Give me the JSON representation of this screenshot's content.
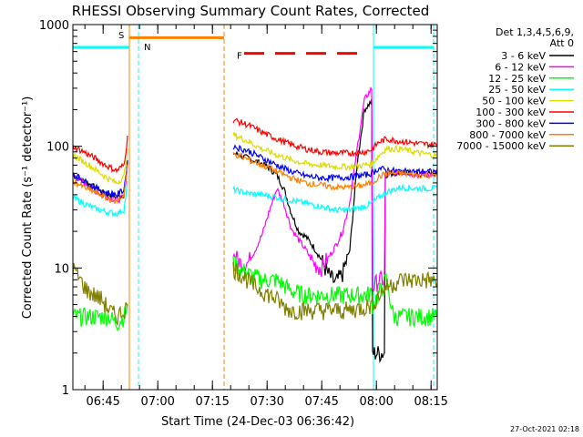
{
  "chart_data": {
    "type": "line",
    "title": "RHESSI Observing Summary Count Rates, Corrected",
    "xlabel": "Start Time (24-Dec-03 06:36:42)",
    "ylabel": "Corrected Count Rate (s⁻¹ detector⁻¹)",
    "yscale": "log",
    "ylim": [
      1,
      1000
    ],
    "xlim_minutes": [
      0,
      100
    ],
    "x_tick_labels": [
      "06:45",
      "07:00",
      "07:15",
      "07:30",
      "07:45",
      "08:00",
      "08:15"
    ],
    "x_tick_minutes": [
      8.3,
      23.3,
      38.3,
      53.3,
      68.3,
      83.3,
      98.3
    ],
    "y_tick_labels": [
      "1",
      "10",
      "100",
      "1000"
    ],
    "y_tick_values": [
      1,
      10,
      100,
      1000
    ],
    "timestamp": "27-Oct-2021 02:18",
    "legend_header": [
      "Det 1,3,4,5,6,9,",
      "Att 0"
    ],
    "annotations": [
      {
        "label": "S",
        "color": "#ff8000"
      },
      {
        "label": "N",
        "color": "#00ffff"
      },
      {
        "label": "F",
        "color": "#ff0000"
      }
    ],
    "series": [
      {
        "name": "3 - 6 keV",
        "color": "#000000",
        "points": [
          [
            0,
            58
          ],
          [
            4,
            50
          ],
          [
            8,
            42
          ],
          [
            12,
            38
          ],
          [
            14,
            40
          ],
          [
            15.2,
            80
          ],
          [
            44,
            88
          ],
          [
            48,
            80
          ],
          [
            52,
            72
          ],
          [
            54,
            66
          ],
          [
            56,
            58
          ],
          [
            58,
            44
          ],
          [
            60,
            28
          ],
          [
            62,
            20
          ],
          [
            64,
            18
          ],
          [
            66,
            15
          ],
          [
            68,
            12
          ],
          [
            70,
            9
          ],
          [
            72,
            7.5
          ],
          [
            74,
            9
          ],
          [
            76,
            14
          ],
          [
            78,
            70
          ],
          [
            80,
            200
          ],
          [
            82,
            235
          ],
          [
            82.3,
            2
          ],
          [
            85.5,
            2
          ],
          [
            85.6,
            58
          ],
          [
            90,
            62
          ],
          [
            95,
            58
          ],
          [
            100,
            60
          ]
        ]
      },
      {
        "name": "6 - 12 keV",
        "color": "#ff00ff",
        "points": [
          [
            0,
            58
          ],
          [
            4,
            48
          ],
          [
            8,
            40
          ],
          [
            12,
            36
          ],
          [
            14,
            38
          ],
          [
            15.2,
            80
          ],
          [
            44,
            13
          ],
          [
            46,
            11
          ],
          [
            48,
            11
          ],
          [
            50,
            14
          ],
          [
            52,
            19
          ],
          [
            54,
            30
          ],
          [
            56,
            45
          ],
          [
            58,
            33
          ],
          [
            60,
            21
          ],
          [
            62,
            17
          ],
          [
            64,
            14
          ],
          [
            66,
            11
          ],
          [
            68,
            10
          ],
          [
            70,
            12
          ],
          [
            72,
            15
          ],
          [
            74,
            20
          ],
          [
            76,
            35
          ],
          [
            78,
            95
          ],
          [
            80,
            240
          ],
          [
            82,
            300
          ],
          [
            82.3,
            7
          ],
          [
            84,
            8
          ],
          [
            85.5,
            8
          ],
          [
            86,
            58
          ],
          [
            90,
            62
          ],
          [
            95,
            58
          ],
          [
            100,
            60
          ]
        ]
      },
      {
        "name": "12 - 25 keV",
        "color": "#00ff00",
        "points": [
          [
            0,
            4
          ],
          [
            2,
            4
          ],
          [
            4,
            4
          ],
          [
            6,
            4
          ],
          [
            8,
            4
          ],
          [
            10,
            4
          ],
          [
            12,
            3.5
          ],
          [
            14,
            4
          ],
          [
            15.2,
            5
          ],
          [
            44,
            11
          ],
          [
            48,
            9
          ],
          [
            52,
            8
          ],
          [
            56,
            8
          ],
          [
            60,
            6.5
          ],
          [
            64,
            6
          ],
          [
            68,
            6
          ],
          [
            72,
            6
          ],
          [
            76,
            6
          ],
          [
            80,
            6
          ],
          [
            82,
            6.2
          ],
          [
            82.3,
            5
          ],
          [
            86,
            8
          ],
          [
            88,
            4
          ],
          [
            92,
            4
          ],
          [
            96,
            4
          ],
          [
            100,
            4
          ]
        ]
      },
      {
        "name": "25 - 50 keV",
        "color": "#00ffff",
        "points": [
          [
            0,
            38
          ],
          [
            3,
            34
          ],
          [
            6,
            31
          ],
          [
            9,
            29
          ],
          [
            12,
            28
          ],
          [
            14,
            30
          ],
          [
            15.2,
            55
          ],
          [
            44,
            44
          ],
          [
            48,
            41
          ],
          [
            52,
            40
          ],
          [
            56,
            38
          ],
          [
            60,
            36
          ],
          [
            64,
            34
          ],
          [
            68,
            32
          ],
          [
            72,
            30
          ],
          [
            76,
            30
          ],
          [
            80,
            32
          ],
          [
            82,
            34
          ],
          [
            84,
            38
          ],
          [
            86,
            42
          ],
          [
            90,
            46
          ],
          [
            95,
            45
          ],
          [
            100,
            45
          ]
        ]
      },
      {
        "name": "50 - 100 keV",
        "color": "#dddd00",
        "points": [
          [
            0,
            85
          ],
          [
            3,
            75
          ],
          [
            6,
            65
          ],
          [
            9,
            56
          ],
          [
            12,
            50
          ],
          [
            14,
            56
          ],
          [
            15.2,
            100
          ],
          [
            44,
            125
          ],
          [
            48,
            110
          ],
          [
            52,
            95
          ],
          [
            56,
            85
          ],
          [
            60,
            77
          ],
          [
            64,
            72
          ],
          [
            68,
            70
          ],
          [
            72,
            68
          ],
          [
            76,
            68
          ],
          [
            80,
            70
          ],
          [
            82,
            72
          ],
          [
            84,
            84
          ],
          [
            86,
            96
          ],
          [
            90,
            95
          ],
          [
            95,
            88
          ],
          [
            100,
            84
          ]
        ]
      },
      {
        "name": "100 - 300 keV",
        "color": "#ff0000",
        "points": [
          [
            0,
            100
          ],
          [
            3,
            90
          ],
          [
            6,
            80
          ],
          [
            9,
            70
          ],
          [
            12,
            63
          ],
          [
            14,
            70
          ],
          [
            15.2,
            130
          ],
          [
            44,
            165
          ],
          [
            48,
            150
          ],
          [
            52,
            130
          ],
          [
            56,
            115
          ],
          [
            60,
            103
          ],
          [
            64,
            95
          ],
          [
            68,
            90
          ],
          [
            72,
            88
          ],
          [
            76,
            88
          ],
          [
            80,
            90
          ],
          [
            82,
            94
          ],
          [
            84,
            108
          ],
          [
            86,
            115
          ],
          [
            90,
            110
          ],
          [
            95,
            105
          ],
          [
            100,
            103
          ]
        ]
      },
      {
        "name": "300 - 800 keV",
        "color": "#0000ff",
        "points": [
          [
            0,
            60
          ],
          [
            3,
            52
          ],
          [
            6,
            46
          ],
          [
            9,
            42
          ],
          [
            12,
            40
          ],
          [
            14,
            44
          ],
          [
            15.2,
            80
          ],
          [
            44,
            100
          ],
          [
            48,
            92
          ],
          [
            52,
            80
          ],
          [
            56,
            70
          ],
          [
            60,
            62
          ],
          [
            64,
            57
          ],
          [
            68,
            55
          ],
          [
            72,
            55
          ],
          [
            76,
            56
          ],
          [
            80,
            58
          ],
          [
            82,
            60
          ],
          [
            84,
            66
          ],
          [
            86,
            64
          ],
          [
            90,
            62
          ],
          [
            95,
            62
          ],
          [
            100,
            62
          ]
        ]
      },
      {
        "name": "800 - 7000 keV",
        "color": "#ff8000",
        "points": [
          [
            0,
            52
          ],
          [
            3,
            46
          ],
          [
            6,
            42
          ],
          [
            9,
            38
          ],
          [
            12,
            35
          ],
          [
            14,
            40
          ],
          [
            15.2,
            75
          ],
          [
            44,
            87
          ],
          [
            48,
            78
          ],
          [
            52,
            70
          ],
          [
            56,
            62
          ],
          [
            60,
            55
          ],
          [
            64,
            50
          ],
          [
            68,
            48
          ],
          [
            72,
            46
          ],
          [
            76,
            46
          ],
          [
            80,
            48
          ],
          [
            82,
            50
          ],
          [
            84,
            56
          ],
          [
            86,
            60
          ],
          [
            90,
            60
          ],
          [
            95,
            58
          ],
          [
            100,
            58
          ]
        ]
      },
      {
        "name": "7000 - 15000 keV",
        "color": "#808000",
        "points": [
          [
            0,
            10
          ],
          [
            2,
            8
          ],
          [
            4,
            6.5
          ],
          [
            6,
            6
          ],
          [
            8,
            5.5
          ],
          [
            10,
            4.5
          ],
          [
            12,
            4
          ],
          [
            14,
            4.5
          ],
          [
            15.2,
            5
          ],
          [
            44,
            10
          ],
          [
            46,
            9
          ],
          [
            48,
            8
          ],
          [
            50,
            7
          ],
          [
            52,
            6.5
          ],
          [
            54,
            6
          ],
          [
            56,
            5.5
          ],
          [
            58,
            4.8
          ],
          [
            60,
            4.5
          ],
          [
            64,
            4.5
          ],
          [
            68,
            4.5
          ],
          [
            72,
            4.5
          ],
          [
            76,
            4.5
          ],
          [
            80,
            4.8
          ],
          [
            82,
            5
          ],
          [
            84,
            6
          ],
          [
            86,
            7
          ],
          [
            88,
            7.5
          ],
          [
            90,
            8
          ],
          [
            94,
            8
          ],
          [
            98,
            8
          ],
          [
            100,
            7.5
          ]
        ]
      }
    ],
    "gaps_minutes": [
      [
        15.2,
        44
      ]
    ],
    "vlines": [
      {
        "x": 0,
        "color": "#00ffff",
        "style": "solid"
      },
      {
        "x": 15.5,
        "color": "#ff8000",
        "style": "solid"
      },
      {
        "x": 18,
        "color": "#00ffff",
        "style": "dashed"
      },
      {
        "x": 41.5,
        "color": "#ff8000",
        "style": "dashed"
      },
      {
        "x": 82.5,
        "color": "#00ffff",
        "style": "solid"
      },
      {
        "x": 99,
        "color": "#00ffff",
        "style": "dashed"
      }
    ],
    "top_bars": [
      {
        "x0": 0,
        "x1": 15.5,
        "y": 650,
        "color": "#00ffff",
        "style": "solid"
      },
      {
        "x0": 15.5,
        "x1": 41.5,
        "y": 780,
        "color": "#ff8000",
        "style": "solid"
      },
      {
        "x0": 82.5,
        "x1": 99,
        "y": 650,
        "color": "#00ffff",
        "style": "solid"
      },
      {
        "x0": 47,
        "x1": 81,
        "y": 580,
        "color": "#ff0000",
        "style": "dashed"
      }
    ]
  }
}
